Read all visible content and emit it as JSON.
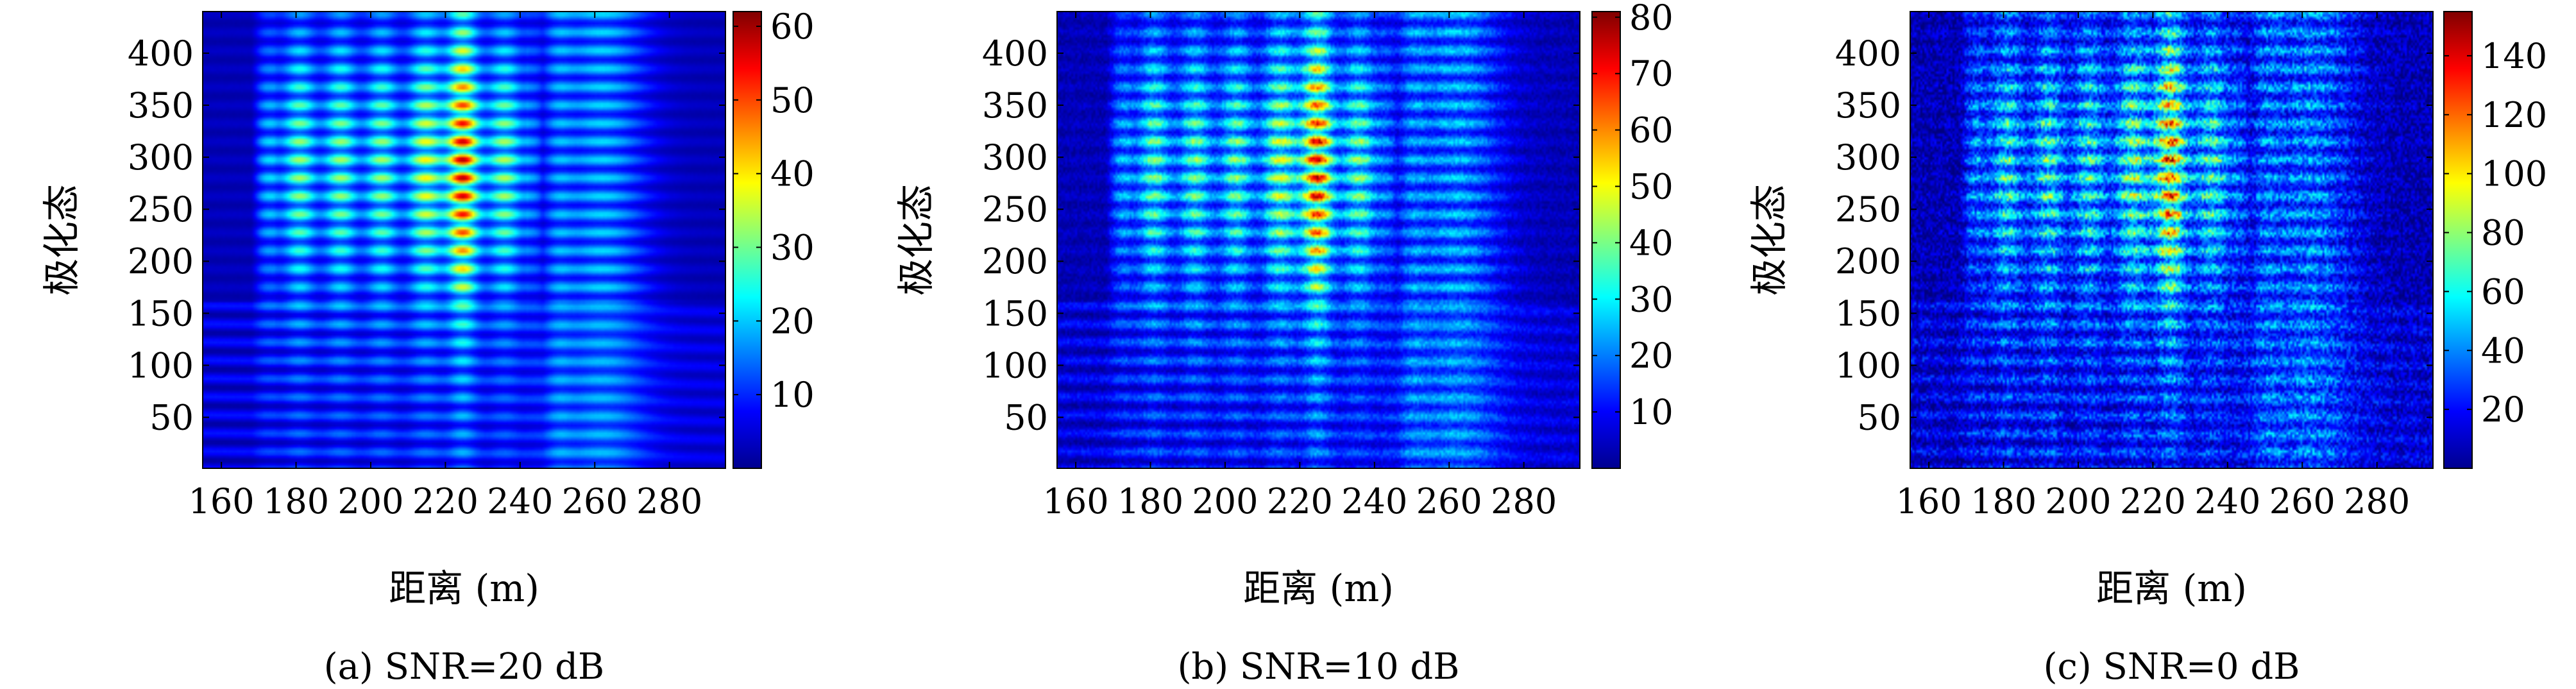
{
  "chart_data": [
    {
      "type": "heatmap",
      "caption": "(a) SNR=20 dB",
      "xlabel": "距离 (m)",
      "ylabel": "极化态",
      "x_ticks": [
        160,
        180,
        200,
        220,
        240,
        260,
        280
      ],
      "y_ticks": [
        50,
        100,
        150,
        200,
        250,
        300,
        350,
        400
      ],
      "xlim": [
        155,
        295
      ],
      "ylim": [
        1,
        440
      ],
      "colorbar": {
        "ticks": [
          10,
          20,
          30,
          40,
          50,
          60
        ],
        "range": [
          0,
          62
        ],
        "colormap": "jet"
      },
      "snr_db": 20,
      "peak_value": 62
    },
    {
      "type": "heatmap",
      "caption": "(b) SNR=10 dB",
      "xlabel": "距离 (m)",
      "ylabel": "极化态",
      "x_ticks": [
        160,
        180,
        200,
        220,
        240,
        260,
        280
      ],
      "y_ticks": [
        50,
        100,
        150,
        200,
        250,
        300,
        350,
        400
      ],
      "xlim": [
        155,
        295
      ],
      "ylim": [
        1,
        440
      ],
      "colorbar": {
        "ticks": [
          10,
          20,
          30,
          40,
          50,
          60,
          70,
          80
        ],
        "range": [
          0,
          81
        ],
        "colormap": "jet"
      },
      "snr_db": 10,
      "peak_value": 80
    },
    {
      "type": "heatmap",
      "caption": "(c) SNR=0 dB",
      "xlabel": "距离 (m)",
      "ylabel": "极化态",
      "x_ticks": [
        160,
        180,
        200,
        220,
        240,
        260,
        280
      ],
      "y_ticks": [
        50,
        100,
        150,
        200,
        250,
        300,
        350,
        400
      ],
      "xlim": [
        155,
        295
      ],
      "ylim": [
        1,
        440
      ],
      "colorbar": {
        "ticks": [
          20,
          40,
          60,
          80,
          100,
          120,
          140
        ],
        "range": [
          0,
          155
        ],
        "colormap": "jet"
      },
      "snr_db": 0,
      "peak_value": 140
    }
  ]
}
